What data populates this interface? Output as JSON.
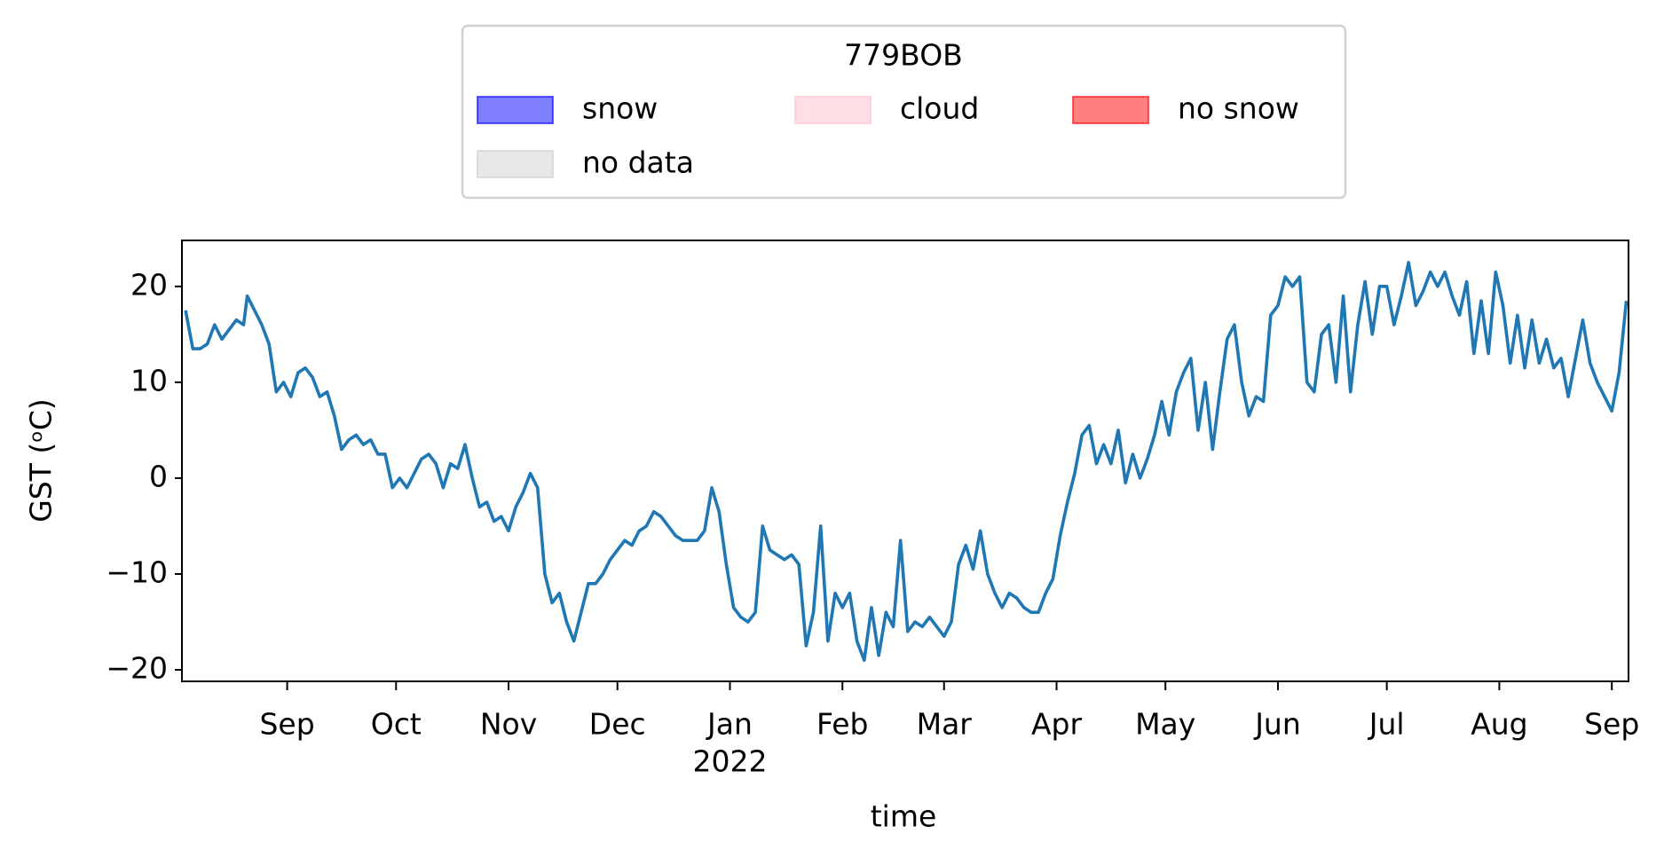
{
  "chart_data": {
    "type": "line",
    "ylabel": "GST (ᵒC)",
    "xlabel": "time",
    "legend": {
      "title": "779BOB",
      "location": "upper center",
      "entries": [
        {
          "name": "snow",
          "color": "#0000ff"
        },
        {
          "name": "cloud",
          "color": "#ffc0cb"
        },
        {
          "name": "no snow",
          "color": "#ff0000"
        },
        {
          "name": "no data",
          "color": "#cccccc"
        }
      ]
    },
    "xlim": [
      2,
      400.6
    ],
    "xticks": [
      {
        "value": 31,
        "label": "Sep"
      },
      {
        "value": 61,
        "label": "Oct"
      },
      {
        "value": 92,
        "label": "Nov"
      },
      {
        "value": 122,
        "label": "Dec"
      },
      {
        "value": 153,
        "label": "Jan"
      },
      {
        "value": 184,
        "label": "Feb"
      },
      {
        "value": 212,
        "label": "Mar"
      },
      {
        "value": 243,
        "label": "Apr"
      },
      {
        "value": 273,
        "label": "May"
      },
      {
        "value": 304,
        "label": "Jun"
      },
      {
        "value": 334,
        "label": "Jul"
      },
      {
        "value": 365,
        "label": "Aug"
      },
      {
        "value": 396,
        "label": "Sep"
      }
    ],
    "x_year_label": {
      "value": 153,
      "label": "2022"
    },
    "ylim": [
      -21.2,
      24.8
    ],
    "yticks": [
      {
        "value": -20,
        "label": "−20"
      },
      {
        "value": -10,
        "label": "−10"
      },
      0,
      10,
      20
    ],
    "grid": false,
    "x": [
      3,
      5,
      7,
      9,
      11,
      13,
      15,
      17,
      19,
      20,
      22,
      24,
      26,
      28,
      30,
      32,
      34,
      36,
      38,
      40,
      42,
      44,
      46,
      48,
      50,
      52,
      54,
      56,
      58,
      60,
      62,
      64,
      66,
      68,
      70,
      72,
      74,
      76,
      78,
      80,
      82,
      84,
      86,
      88,
      90,
      92,
      94,
      96,
      98,
      100,
      102,
      104,
      106,
      108,
      110,
      112,
      114,
      116,
      118,
      120,
      122,
      124,
      126,
      128,
      130,
      132,
      134,
      136,
      138,
      140,
      142,
      144,
      146,
      148,
      150,
      152,
      154,
      156,
      158,
      160,
      162,
      164,
      166,
      168,
      170,
      172,
      174,
      176,
      178,
      180,
      182,
      184,
      186,
      188,
      190,
      192,
      194,
      196,
      198,
      200,
      202,
      204,
      206,
      208,
      210,
      212,
      214,
      216,
      218,
      220,
      222,
      224,
      226,
      228,
      230,
      232,
      234,
      236,
      238,
      240,
      242,
      244,
      246,
      248,
      250,
      252,
      254,
      256,
      258,
      260,
      262,
      264,
      266,
      268,
      270,
      272,
      274,
      276,
      278,
      280,
      282,
      284,
      286,
      288,
      290,
      292,
      294,
      296,
      298,
      300,
      302,
      304,
      306,
      308,
      310,
      312,
      314,
      316,
      318,
      320,
      322,
      324,
      326,
      328,
      330,
      332,
      334,
      336,
      338,
      340,
      342,
      344,
      346,
      348,
      350,
      352,
      354,
      356,
      358,
      360,
      362,
      364,
      366,
      368,
      370,
      372,
      374,
      376,
      378,
      380,
      382,
      384,
      386,
      388,
      390,
      392,
      394,
      396,
      398,
      400
    ],
    "series": [
      {
        "color": "#1f77b4",
        "values": [
          17.5,
          13.5,
          13.5,
          14,
          16,
          14.5,
          15.5,
          16.5,
          16,
          19,
          17.5,
          16,
          14,
          9,
          10,
          8.5,
          11,
          11.5,
          10.5,
          8.5,
          9,
          6.5,
          3,
          4,
          4.5,
          3.5,
          4,
          2.5,
          2.5,
          -1,
          0,
          -1,
          0.5,
          2,
          2.5,
          1.5,
          -1,
          1.5,
          1,
          3.5,
          0,
          -3,
          -2.5,
          -4.5,
          -4,
          -5.5,
          -3,
          -1.5,
          0.5,
          -1,
          -10,
          -13,
          -12,
          -15,
          -17,
          -14,
          -11,
          -11,
          -10,
          -8.5,
          -7.5,
          -6.5,
          -7,
          -5.5,
          -5,
          -3.5,
          -4,
          -5,
          -6,
          -6.5,
          -6.5,
          -6.5,
          -5.5,
          -1,
          -3.5,
          -9,
          -13.5,
          -14.5,
          -15,
          -14,
          -5,
          -7.5,
          -8,
          -8.5,
          -8,
          -9,
          -17.5,
          -14,
          -5,
          -17,
          -12,
          -13.5,
          -12,
          -17,
          -19,
          -13.5,
          -18.5,
          -14,
          -15.5,
          -6.5,
          -16,
          -15,
          -15.5,
          -14.5,
          -15.5,
          -16.5,
          -15,
          -9,
          -7,
          -9.5,
          -5.5,
          -10,
          -12,
          -13.5,
          -12,
          -12.5,
          -13.5,
          -14,
          -14,
          -12,
          -10.5,
          -6,
          -2.5,
          0.5,
          4.5,
          5.5,
          1.5,
          3.5,
          1.5,
          5,
          -0.5,
          2.5,
          0,
          2,
          4.5,
          8,
          4.5,
          9,
          11,
          12.5,
          5,
          10,
          3,
          9,
          14.5,
          16,
          10,
          6.5,
          8.5,
          8,
          17,
          18,
          21,
          20,
          21,
          10,
          9,
          15,
          16,
          10,
          19,
          9,
          16,
          20.5,
          15,
          20,
          20,
          16,
          19,
          22.5,
          18,
          19.5,
          21.5,
          20,
          21.5,
          19,
          17,
          20.5,
          13,
          18.5,
          13,
          21.5,
          18,
          12,
          17,
          11.5,
          16.5,
          12,
          14.5,
          11.5,
          12.5,
          8.5,
          12.5,
          16.5,
          12,
          10,
          8.5,
          7,
          11,
          18.5
        ]
      }
    ]
  }
}
